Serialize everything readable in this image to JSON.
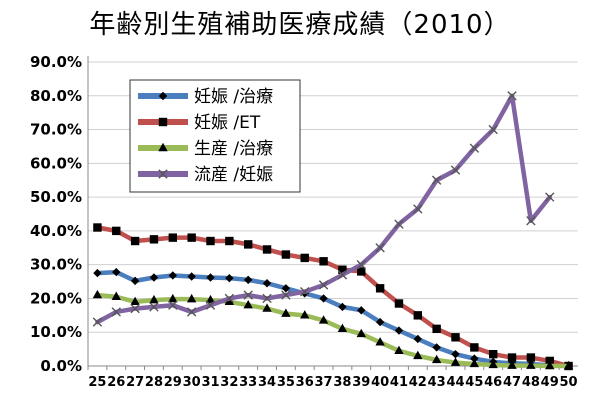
{
  "chart_data": {
    "type": "line",
    "title": "年齢別生殖補助医療成績（2010）",
    "xlabel": "",
    "ylabel": "",
    "x": [
      25,
      26,
      27,
      28,
      29,
      30,
      31,
      32,
      33,
      34,
      35,
      36,
      37,
      38,
      39,
      40,
      41,
      42,
      43,
      44,
      45,
      46,
      47,
      48,
      49,
      50
    ],
    "ylim": [
      0,
      90
    ],
    "yticks": [
      "0.0%",
      "10.0%",
      "20.0%",
      "30.0%",
      "40.0%",
      "50.0%",
      "60.0%",
      "70.0%",
      "80.0%",
      "90.0%"
    ],
    "legend_position": "top-left",
    "series": [
      {
        "name": "妊娠 /治療",
        "color": "#4a7ebf",
        "marker": "diamond",
        "values": [
          27.5,
          27.8,
          25.2,
          26.2,
          26.8,
          26.5,
          26.2,
          26.0,
          25.5,
          24.5,
          23.0,
          21.5,
          20.0,
          17.5,
          16.5,
          13.0,
          10.5,
          8.0,
          5.5,
          3.5,
          2.2,
          1.2,
          0.8,
          0.6,
          0.2,
          0
        ]
      },
      {
        "name": "妊娠 /ET",
        "color": "#c0504d",
        "marker": "square",
        "values": [
          41.0,
          40.0,
          37.0,
          37.5,
          38.0,
          38.0,
          37.0,
          37.0,
          36.0,
          34.5,
          33.0,
          32.0,
          31.0,
          28.5,
          28.0,
          23.0,
          18.5,
          15.0,
          11.0,
          8.5,
          5.5,
          3.5,
          2.5,
          2.5,
          1.5,
          0
        ]
      },
      {
        "name": "生産 /治療",
        "color": "#9bbb59",
        "marker": "triangle",
        "values": [
          21.0,
          20.5,
          19.0,
          19.5,
          19.8,
          19.8,
          19.5,
          19.0,
          18.0,
          17.0,
          15.5,
          15.0,
          13.5,
          11.0,
          9.5,
          7.0,
          4.5,
          3.0,
          1.8,
          1.0,
          0.6,
          0.3,
          0.1,
          0.1,
          0,
          0
        ]
      },
      {
        "name": "流産 /妊娠",
        "color": "#8064a2",
        "marker": "x",
        "values": [
          13.0,
          16.0,
          17.0,
          17.5,
          18.0,
          16.0,
          18.0,
          20.0,
          21.0,
          20.0,
          21.0,
          22.0,
          24.0,
          27.0,
          30.0,
          35.0,
          42.0,
          46.5,
          55.0,
          58.0,
          64.5,
          70.0,
          80.0,
          43.0,
          50.0,
          null
        ]
      }
    ]
  }
}
